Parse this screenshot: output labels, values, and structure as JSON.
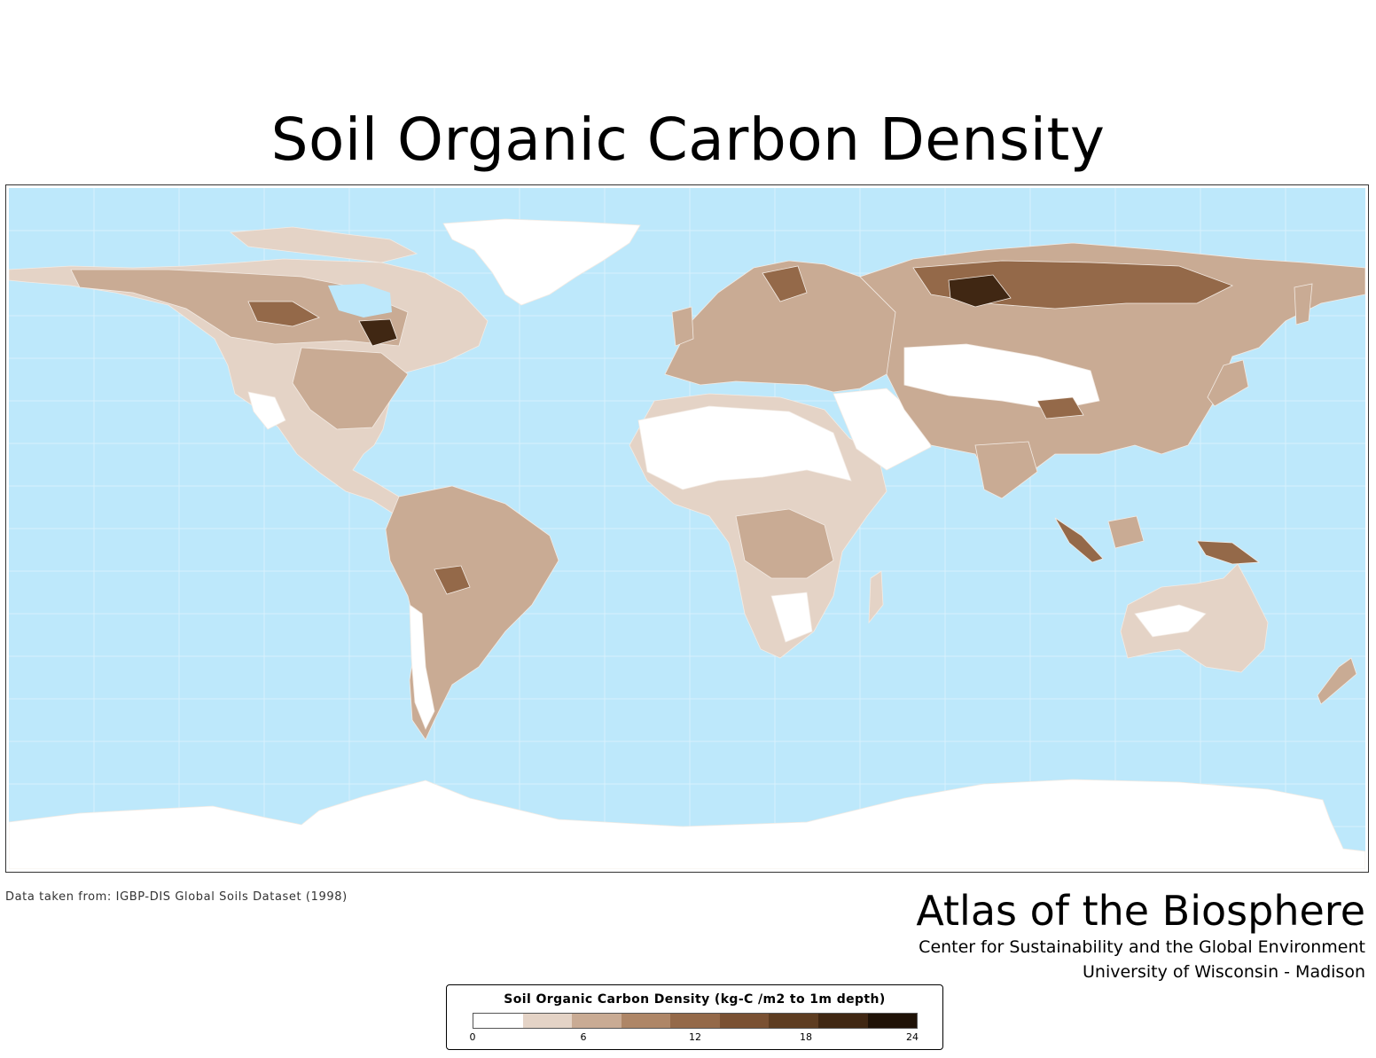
{
  "title": "Soil Organic Carbon Density",
  "legend": {
    "title": "Soil Organic Carbon Density (kg-C /m2 to 1m depth)",
    "ticks": [
      "0",
      "6",
      "12",
      "18",
      "24"
    ],
    "colors": [
      "#ffffff",
      "#e4d3c6",
      "#c9ab94",
      "#ae8667",
      "#946949",
      "#7a5133",
      "#5e3d22",
      "#402713",
      "#1f1207"
    ]
  },
  "source": "Data taken from: IGBP-DIS Global Soils Dataset (1998)",
  "brand": {
    "title": "Atlas of the Biosphere",
    "subtitle1": "Center for Sustainability and the Global Environment",
    "subtitle2": "University of Wisconsin - Madison"
  },
  "map": {
    "ocean_color": "#bde8fb",
    "ice_color": "#ffffff",
    "grid_color": "#d8f1fd",
    "low_color": "#e4d3c6",
    "medium_color": "#c9ab94",
    "high_color": "#946949",
    "very_high_color": "#402713"
  }
}
